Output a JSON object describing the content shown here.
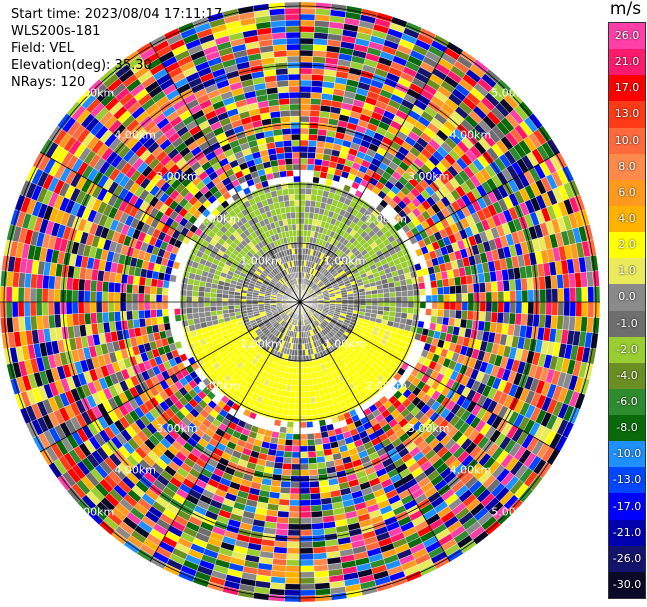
{
  "info": {
    "start_time": "Start time: 2023/08/04 17:11:17",
    "instrument": "WLS200s-181",
    "field": "Field: VEL",
    "elevation": "Elevation(deg): 35.30",
    "nrays": "NRays: 120"
  },
  "range_labels": [
    "1.00km",
    "2.00km",
    "3.00km",
    "4.00km",
    "5.00km"
  ],
  "colorbar": {
    "unit": "m/s",
    "ticks": [
      "26.0",
      "21.0",
      "17.0",
      "13.0",
      "10.0",
      "8.0",
      "6.0",
      "4.0",
      "2.0",
      "1.0",
      "0.0",
      "-1.0",
      "-2.0",
      "-4.0",
      "-6.0",
      "-8.0",
      "-10.0",
      "-13.0",
      "-17.0",
      "-21.0",
      "-26.0",
      "-30.0"
    ],
    "colors": [
      "#ff3fa8",
      "#ff1a6e",
      "#ff0000",
      "#ff3a16",
      "#ff6a3c",
      "#ff8a4a",
      "#ff9a1e",
      "#ffb200",
      "#ffff00",
      "#eaea5a",
      "#8a8a8a",
      "#6e6e6e",
      "#9acd32",
      "#6b8e23",
      "#2e8b2e",
      "#0a6a0a",
      "#1e90ff",
      "#0047ff",
      "#0000ff",
      "#0000b0",
      "#14146e",
      "#0a0a28"
    ]
  }
}
